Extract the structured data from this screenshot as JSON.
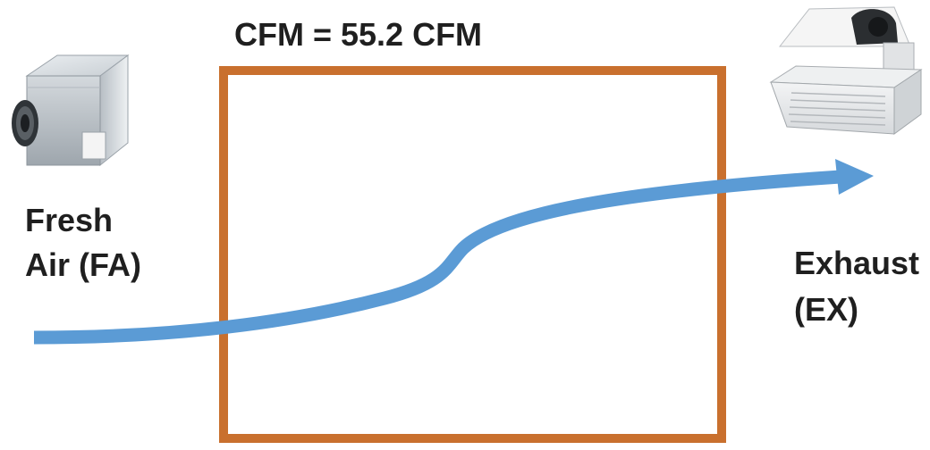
{
  "flow_label": "CFM = 55.2 CFM",
  "fresh_air": {
    "line1": "Fresh",
    "line2": "Air (FA)",
    "icon": "fresh-air-box-unit-icon"
  },
  "exhaust": {
    "line1": "Exhaust",
    "line2": "(EX)",
    "icon": "ceiling-exhaust-fan-icon"
  },
  "colors": {
    "room_outline": "#C9702E",
    "airflow_arrow": "#5B9BD5",
    "text": "#1F1F1F"
  }
}
